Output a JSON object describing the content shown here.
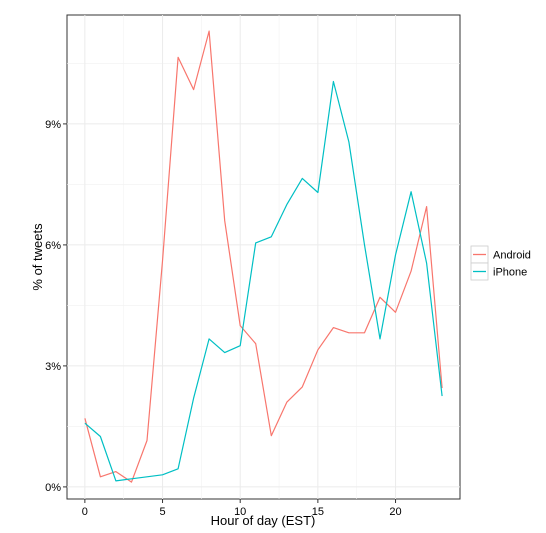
{
  "chart_data": {
    "type": "line",
    "xlabel": "Hour of day (EST)",
    "ylabel": "% of tweets",
    "xlim": [
      -1.15,
      24.15
    ],
    "ylim": [
      -0.3,
      11.7
    ],
    "x_ticks": [
      0,
      5,
      10,
      15,
      20
    ],
    "x_tick_labels": [
      "0",
      "5",
      "10",
      "15",
      "20"
    ],
    "y_ticks": [
      0,
      3,
      6,
      9
    ],
    "y_tick_labels": [
      "0%",
      "3%",
      "6%",
      "9%"
    ],
    "grid": true,
    "legend_position": "right",
    "x": [
      0,
      1,
      2,
      3,
      4,
      5,
      6,
      7,
      8,
      9,
      10,
      11,
      12,
      13,
      14,
      15,
      16,
      17,
      18,
      19,
      20,
      21,
      22,
      23
    ],
    "series": [
      {
        "name": "Android",
        "color": "#F8766D",
        "values": [
          1.7,
          0.25,
          0.38,
          0.12,
          1.15,
          5.6,
          10.65,
          9.85,
          11.3,
          6.6,
          4.0,
          3.55,
          1.27,
          2.1,
          2.48,
          3.4,
          3.95,
          3.82,
          3.82,
          4.7,
          4.33,
          5.35,
          6.95,
          2.45
        ]
      },
      {
        "name": "iPhone",
        "color": "#00BFC4",
        "values": [
          1.58,
          1.25,
          0.15,
          0.2,
          0.25,
          0.3,
          0.45,
          2.2,
          3.67,
          3.33,
          3.5,
          6.05,
          6.2,
          7.0,
          7.65,
          7.3,
          10.05,
          8.55,
          6.0,
          3.67,
          5.75,
          7.32,
          5.55,
          2.25
        ]
      }
    ]
  }
}
